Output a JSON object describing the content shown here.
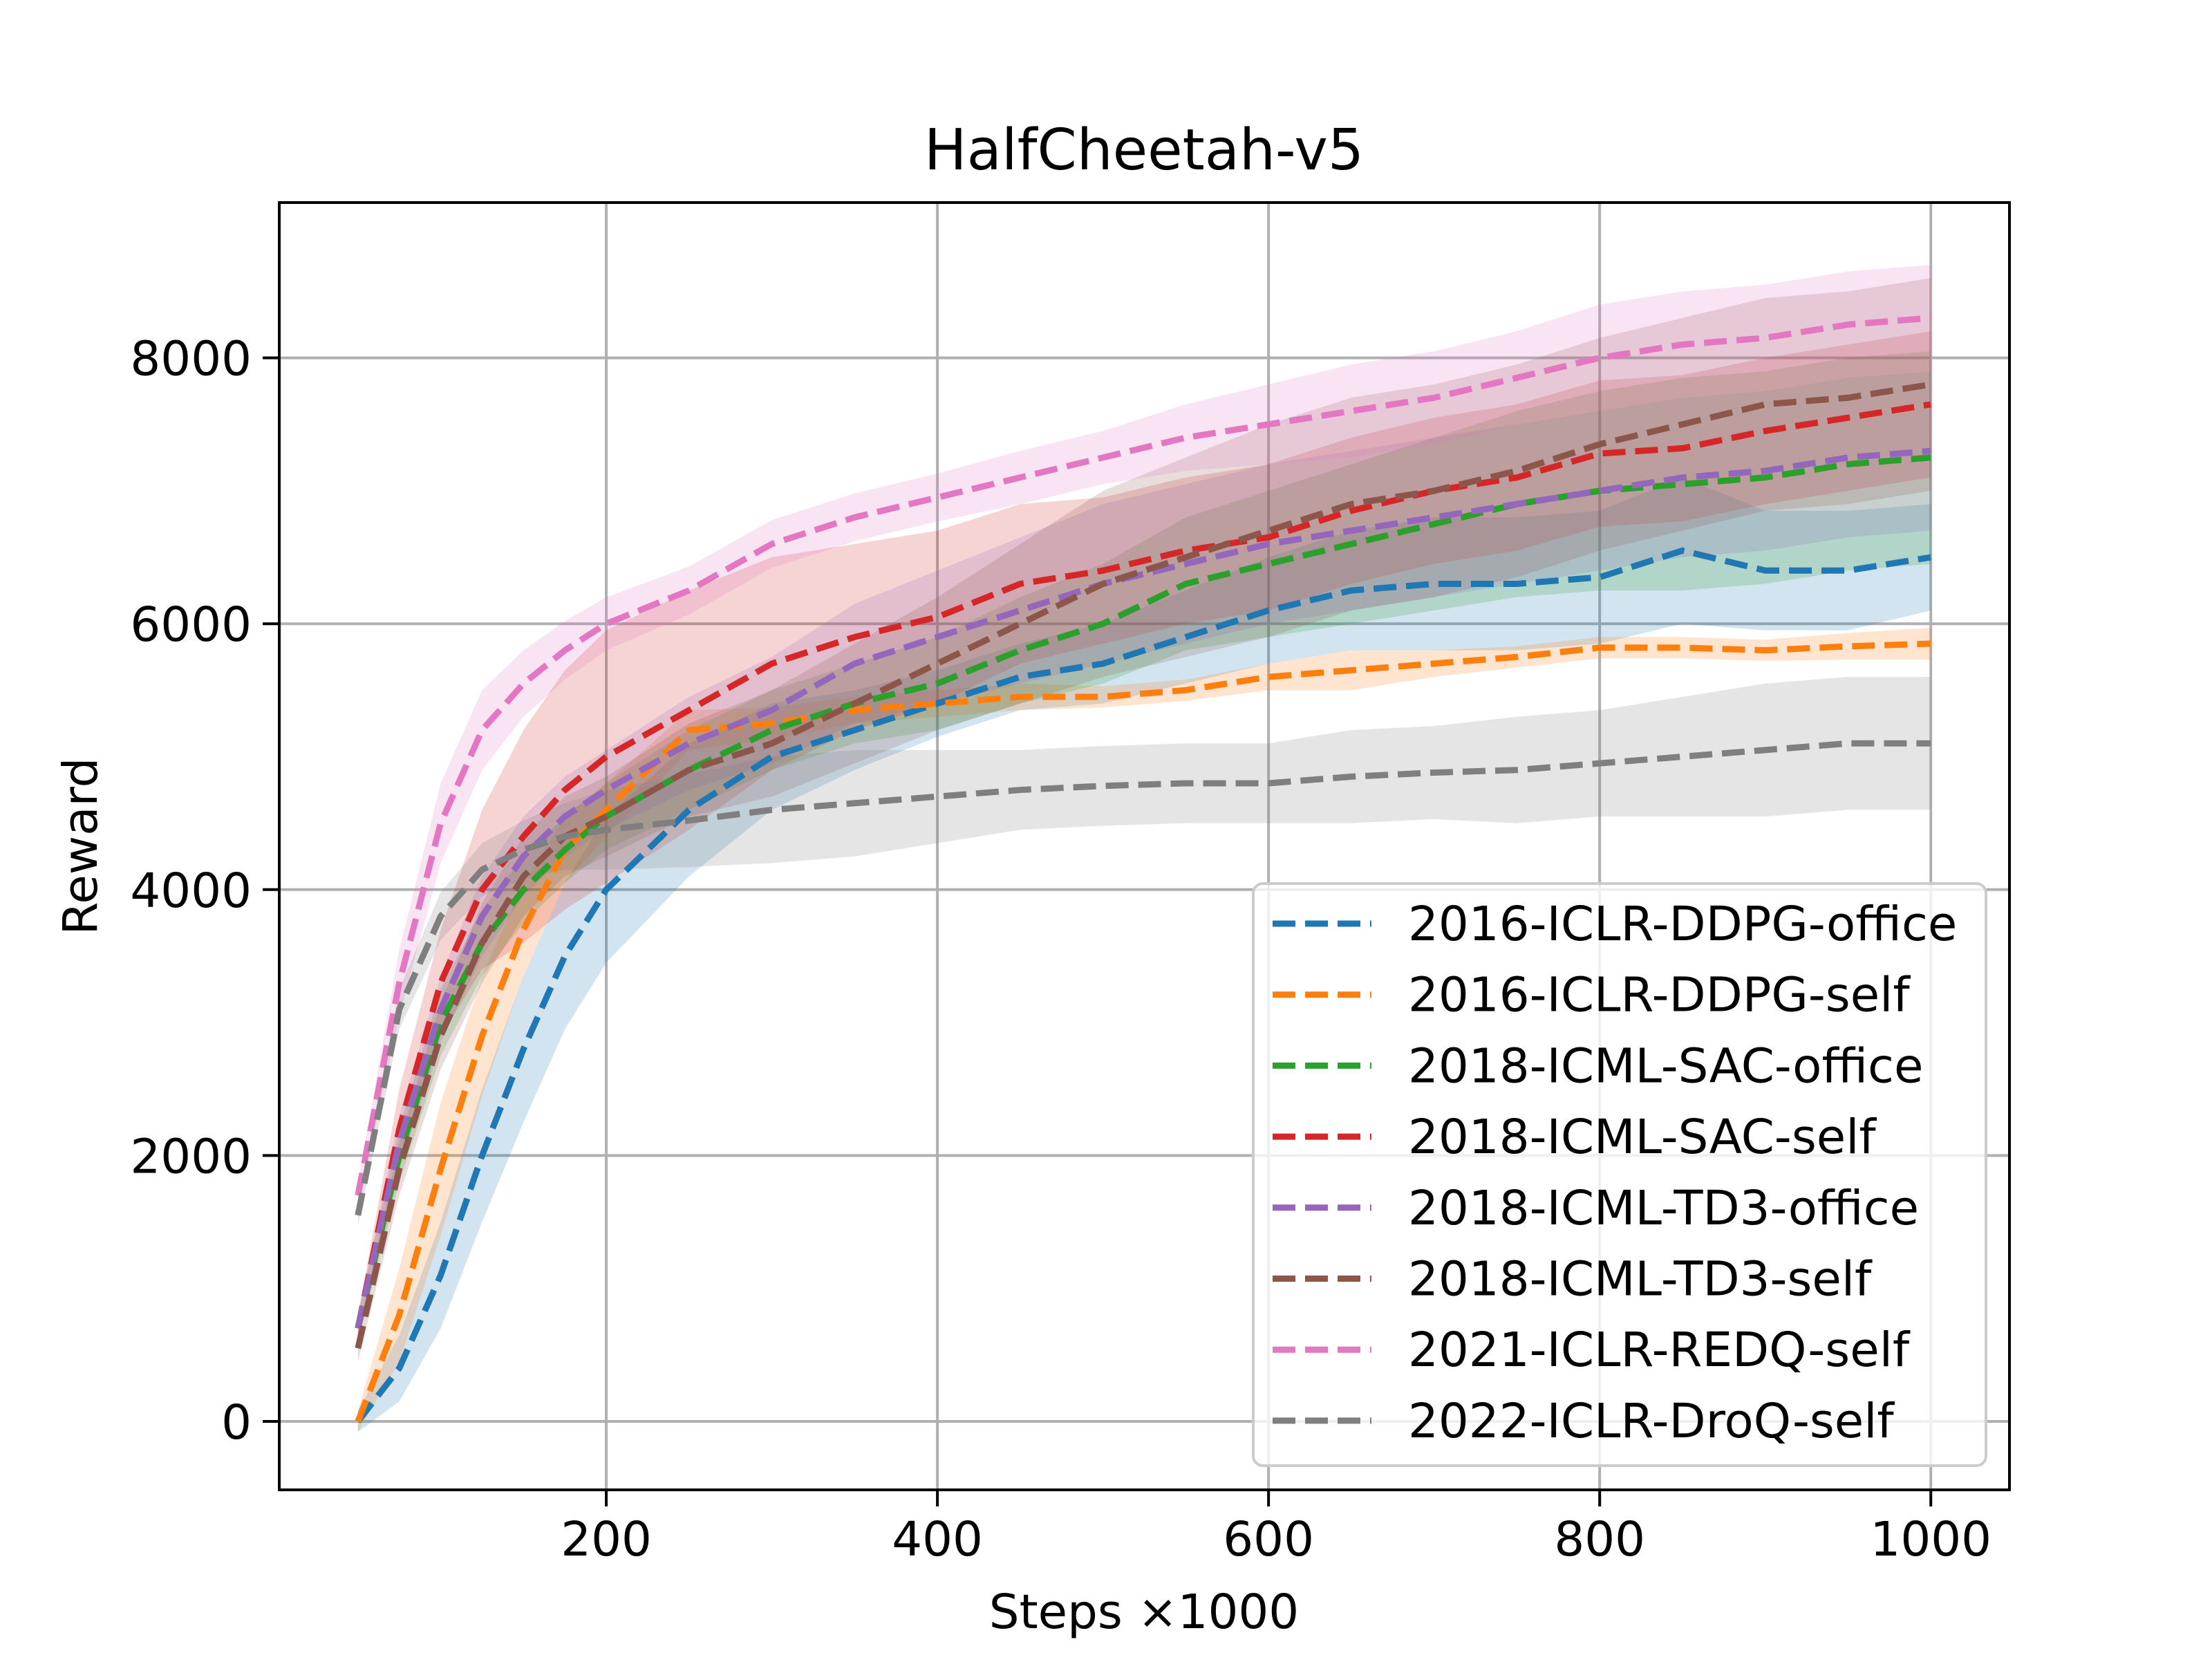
{
  "chart_data": {
    "type": "line",
    "title": "HalfCheetah-v5",
    "xlabel": "Steps ×1000",
    "ylabel": "Reward",
    "xlim": [
      2.5,
      1047.5
    ],
    "ylim": [
      -515,
      9168
    ],
    "xticks": [
      200,
      400,
      600,
      800,
      1000
    ],
    "yticks": [
      0,
      2000,
      4000,
      6000,
      8000
    ],
    "grid": true,
    "legend_position": "lower-right",
    "x": [
      50,
      75,
      100,
      125,
      150,
      175,
      200,
      250,
      300,
      350,
      400,
      450,
      500,
      550,
      600,
      650,
      700,
      750,
      800,
      850,
      900,
      950,
      1000
    ],
    "series": [
      {
        "name": "2016-ICLR-DDPG-office",
        "color": "#1f77b4",
        "values": [
          0,
          400,
          1100,
          2000,
          2800,
          3500,
          4000,
          4600,
          5000,
          5200,
          5400,
          5600,
          5700,
          5900,
          6100,
          6250,
          6300,
          6300,
          6350,
          6550,
          6400,
          6400,
          6500
        ],
        "std": [
          80,
          250,
          400,
          500,
          550,
          550,
          550,
          500,
          400,
          300,
          250,
          250,
          300,
          350,
          400,
          450,
          500,
          500,
          500,
          550,
          450,
          450,
          400
        ]
      },
      {
        "name": "2016-ICLR-DDPG-self",
        "color": "#ff7f0e",
        "values": [
          0,
          800,
          1900,
          2900,
          3700,
          4300,
          4600,
          5200,
          5250,
          5350,
          5400,
          5450,
          5450,
          5500,
          5600,
          5650,
          5700,
          5750,
          5820,
          5820,
          5800,
          5830,
          5850
        ],
        "std": [
          80,
          350,
          500,
          450,
          350,
          250,
          200,
          150,
          120,
          100,
          100,
          100,
          80,
          80,
          100,
          150,
          100,
          80,
          80,
          80,
          80,
          100,
          120
        ]
      },
      {
        "name": "2018-ICML-SAC-office",
        "color": "#2ca02c",
        "values": [
          700,
          2000,
          3000,
          3600,
          4000,
          4300,
          4550,
          4900,
          5200,
          5400,
          5550,
          5800,
          6000,
          6300,
          6450,
          6600,
          6750,
          6900,
          7000,
          7050,
          7100,
          7200,
          7250
        ],
        "std": [
          100,
          200,
          250,
          250,
          250,
          250,
          250,
          300,
          300,
          300,
          350,
          400,
          450,
          500,
          550,
          600,
          650,
          700,
          750,
          800,
          800,
          800,
          800
        ]
      },
      {
        "name": "2018-ICML-SAC-self",
        "color": "#d62728",
        "values": [
          700,
          2200,
          3300,
          4000,
          4400,
          4750,
          5000,
          5350,
          5700,
          5900,
          6050,
          6300,
          6400,
          6550,
          6650,
          6850,
          7000,
          7100,
          7280,
          7320,
          7450,
          7550,
          7650
        ],
        "std": [
          100,
          300,
          400,
          600,
          800,
          900,
          950,
          900,
          800,
          700,
          650,
          600,
          550,
          550,
          550,
          550,
          550,
          550,
          550,
          550,
          550,
          550,
          550
        ]
      },
      {
        "name": "2018-ICML-TD3-office",
        "color": "#9467bd",
        "values": [
          700,
          2100,
          3100,
          3800,
          4250,
          4550,
          4750,
          5100,
          5350,
          5700,
          5900,
          6100,
          6300,
          6450,
          6600,
          6700,
          6800,
          6900,
          7000,
          7100,
          7150,
          7250,
          7300
        ],
        "std": [
          100,
          200,
          250,
          300,
          300,
          300,
          300,
          350,
          400,
          450,
          500,
          550,
          600,
          600,
          600,
          600,
          600,
          600,
          600,
          600,
          600,
          600,
          600
        ]
      },
      {
        "name": "2018-ICML-TD3-self",
        "color": "#8c564b",
        "values": [
          550,
          1900,
          2900,
          3600,
          4100,
          4400,
          4550,
          4900,
          5100,
          5400,
          5700,
          6000,
          6300,
          6500,
          6700,
          6900,
          7000,
          7150,
          7350,
          7500,
          7650,
          7700,
          7800
        ],
        "std": [
          100,
          200,
          250,
          300,
          300,
          300,
          300,
          350,
          400,
          450,
          500,
          600,
          700,
          750,
          800,
          800,
          800,
          800,
          800,
          800,
          800,
          800,
          800
        ]
      },
      {
        "name": "2021-ICLR-REDQ-self",
        "color": "#e377c2",
        "values": [
          1700,
          3300,
          4500,
          5200,
          5550,
          5800,
          6000,
          6250,
          6600,
          6800,
          6950,
          7100,
          7250,
          7400,
          7500,
          7600,
          7700,
          7850,
          8000,
          8100,
          8150,
          8250,
          8300
        ],
        "std": [
          100,
          250,
          300,
          300,
          250,
          220,
          200,
          180,
          180,
          180,
          180,
          200,
          200,
          250,
          300,
          350,
          350,
          350,
          400,
          400,
          400,
          400,
          400
        ]
      },
      {
        "name": "2022-ICLR-DroQ-self",
        "color": "#7f7f7f",
        "values": [
          1550,
          3100,
          3800,
          4150,
          4300,
          4400,
          4450,
          4520,
          4600,
          4650,
          4700,
          4750,
          4780,
          4800,
          4800,
          4850,
          4880,
          4900,
          4950,
          5000,
          5050,
          5100,
          5100
        ],
        "std": [
          80,
          150,
          180,
          200,
          220,
          250,
          300,
          350,
          400,
          400,
          350,
          300,
          300,
          300,
          300,
          350,
          350,
          400,
          400,
          450,
          500,
          500,
          500
        ]
      }
    ]
  }
}
